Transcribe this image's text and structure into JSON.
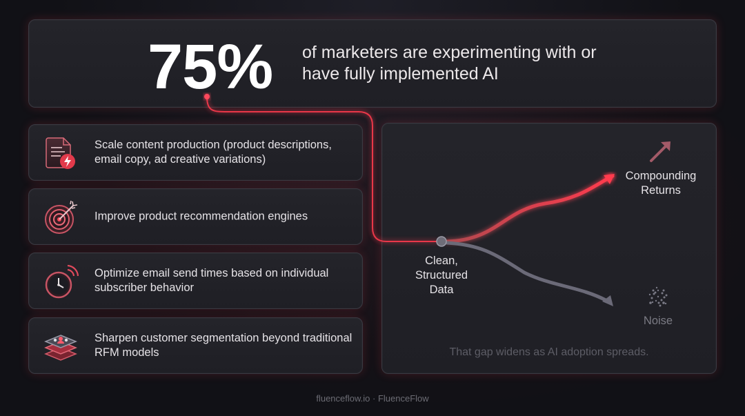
{
  "stat": {
    "number": "75%",
    "text": "of marketers are experimenting with or have fully implemented AI"
  },
  "items": [
    {
      "icon": "document-lightning-icon",
      "text": "Scale content production (product descriptions, email copy, ad creative variations)"
    },
    {
      "icon": "target-arrow-icon",
      "text": "Improve product recommendation engines"
    },
    {
      "icon": "clock-signal-icon",
      "text": "Optimize email send times based on individual subscriber behavior"
    },
    {
      "icon": "layers-people-icon",
      "text": "Sharpen customer segmentation beyond traditional RFM models"
    }
  ],
  "diagram": {
    "origin_label": "Clean, Structured Data",
    "upper_label": "Compounding Returns",
    "lower_label": "Noise",
    "caption": "That gap widens as AI adoption spreads."
  },
  "footer": "fluenceflow.io · FluenceFlow",
  "colors": {
    "accent": "#ff3b4e",
    "muted_path": "#6b6a78",
    "card_bg": "#222228",
    "page_bg": "#111116"
  }
}
